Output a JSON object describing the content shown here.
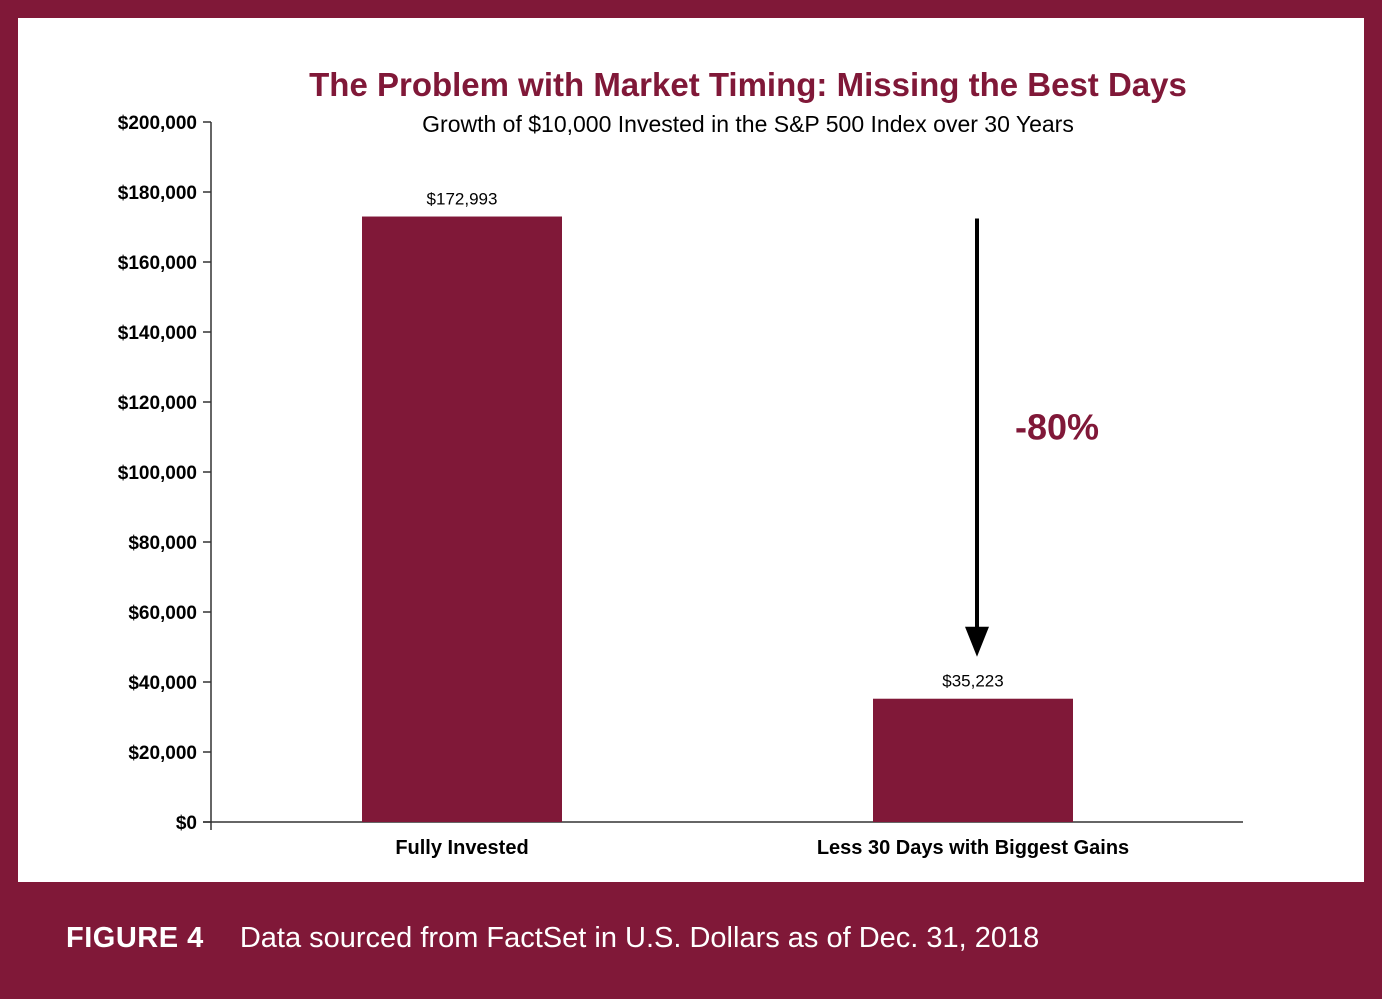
{
  "colors": {
    "frame": "#801838",
    "bar": "#801838",
    "accent_text": "#801838",
    "panel": "#ffffff",
    "text": "#000000"
  },
  "chart_data": {
    "type": "bar",
    "title": "The Problem with Market Timing: Missing the Best Days",
    "subtitle": "Growth of $10,000 Invested in the S&P 500 Index over 30 Years",
    "categories": [
      "Fully Invested",
      "Less 30 Days with Biggest Gains"
    ],
    "values": [
      172993,
      35223
    ],
    "data_labels": [
      "$172,993",
      "$35,223"
    ],
    "ylim": [
      0,
      200000
    ],
    "yticks": [
      0,
      20000,
      40000,
      60000,
      80000,
      100000,
      120000,
      140000,
      160000,
      180000,
      200000
    ],
    "ytick_labels": [
      "$0",
      "$20,000",
      "$40,000",
      "$60,000",
      "$80,000",
      "$100,000",
      "$120,000",
      "$140,000",
      "$160,000",
      "$180,000",
      "$200,000"
    ],
    "grid": false,
    "annotation": {
      "text": "-80%",
      "arrow": "down"
    }
  },
  "caption": {
    "figure_label": "FIGURE 4",
    "source_text": "Data sourced from FactSet in U.S. Dollars as of Dec. 31, 2018"
  }
}
